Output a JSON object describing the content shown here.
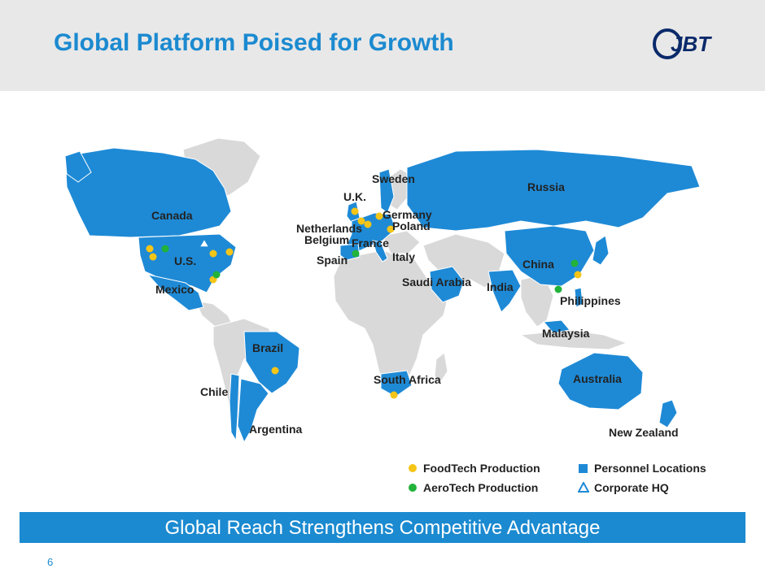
{
  "title": "Global Platform Poised for Growth",
  "logo_text": "JBT",
  "banner": "Global Reach Strengthens Competitive Advantage",
  "page_number": "6",
  "colors": {
    "accent": "#1b8ad0",
    "land_personnel": "#1e8ad6",
    "land_other": "#d9d9d9",
    "foodtech": "#f5c518",
    "aerotech": "#22b33a"
  },
  "countries": {
    "canada": "Canada",
    "us": "U.S.",
    "mexico": "Mexico",
    "brazil": "Brazil",
    "chile": "Chile",
    "argentina": "Argentina",
    "uk": "U.K.",
    "sweden": "Sweden",
    "netherlands": "Netherlands",
    "belgium": "Belgium",
    "france": "France",
    "spain": "Spain",
    "germany": "Germany",
    "poland": "Poland",
    "italy": "Italy",
    "russia": "Russia",
    "saudi": "Saudi Arabia",
    "india": "India",
    "china": "China",
    "philippines": "Philippines",
    "malaysia": "Malaysia",
    "south_africa": "South Africa",
    "australia": "Australia",
    "new_zealand": "New Zealand"
  },
  "legend": {
    "foodtech": "FoodTech Production",
    "aerotech": "AeroTech Production",
    "personnel": "Personnel Locations",
    "hq": "Corporate HQ"
  }
}
